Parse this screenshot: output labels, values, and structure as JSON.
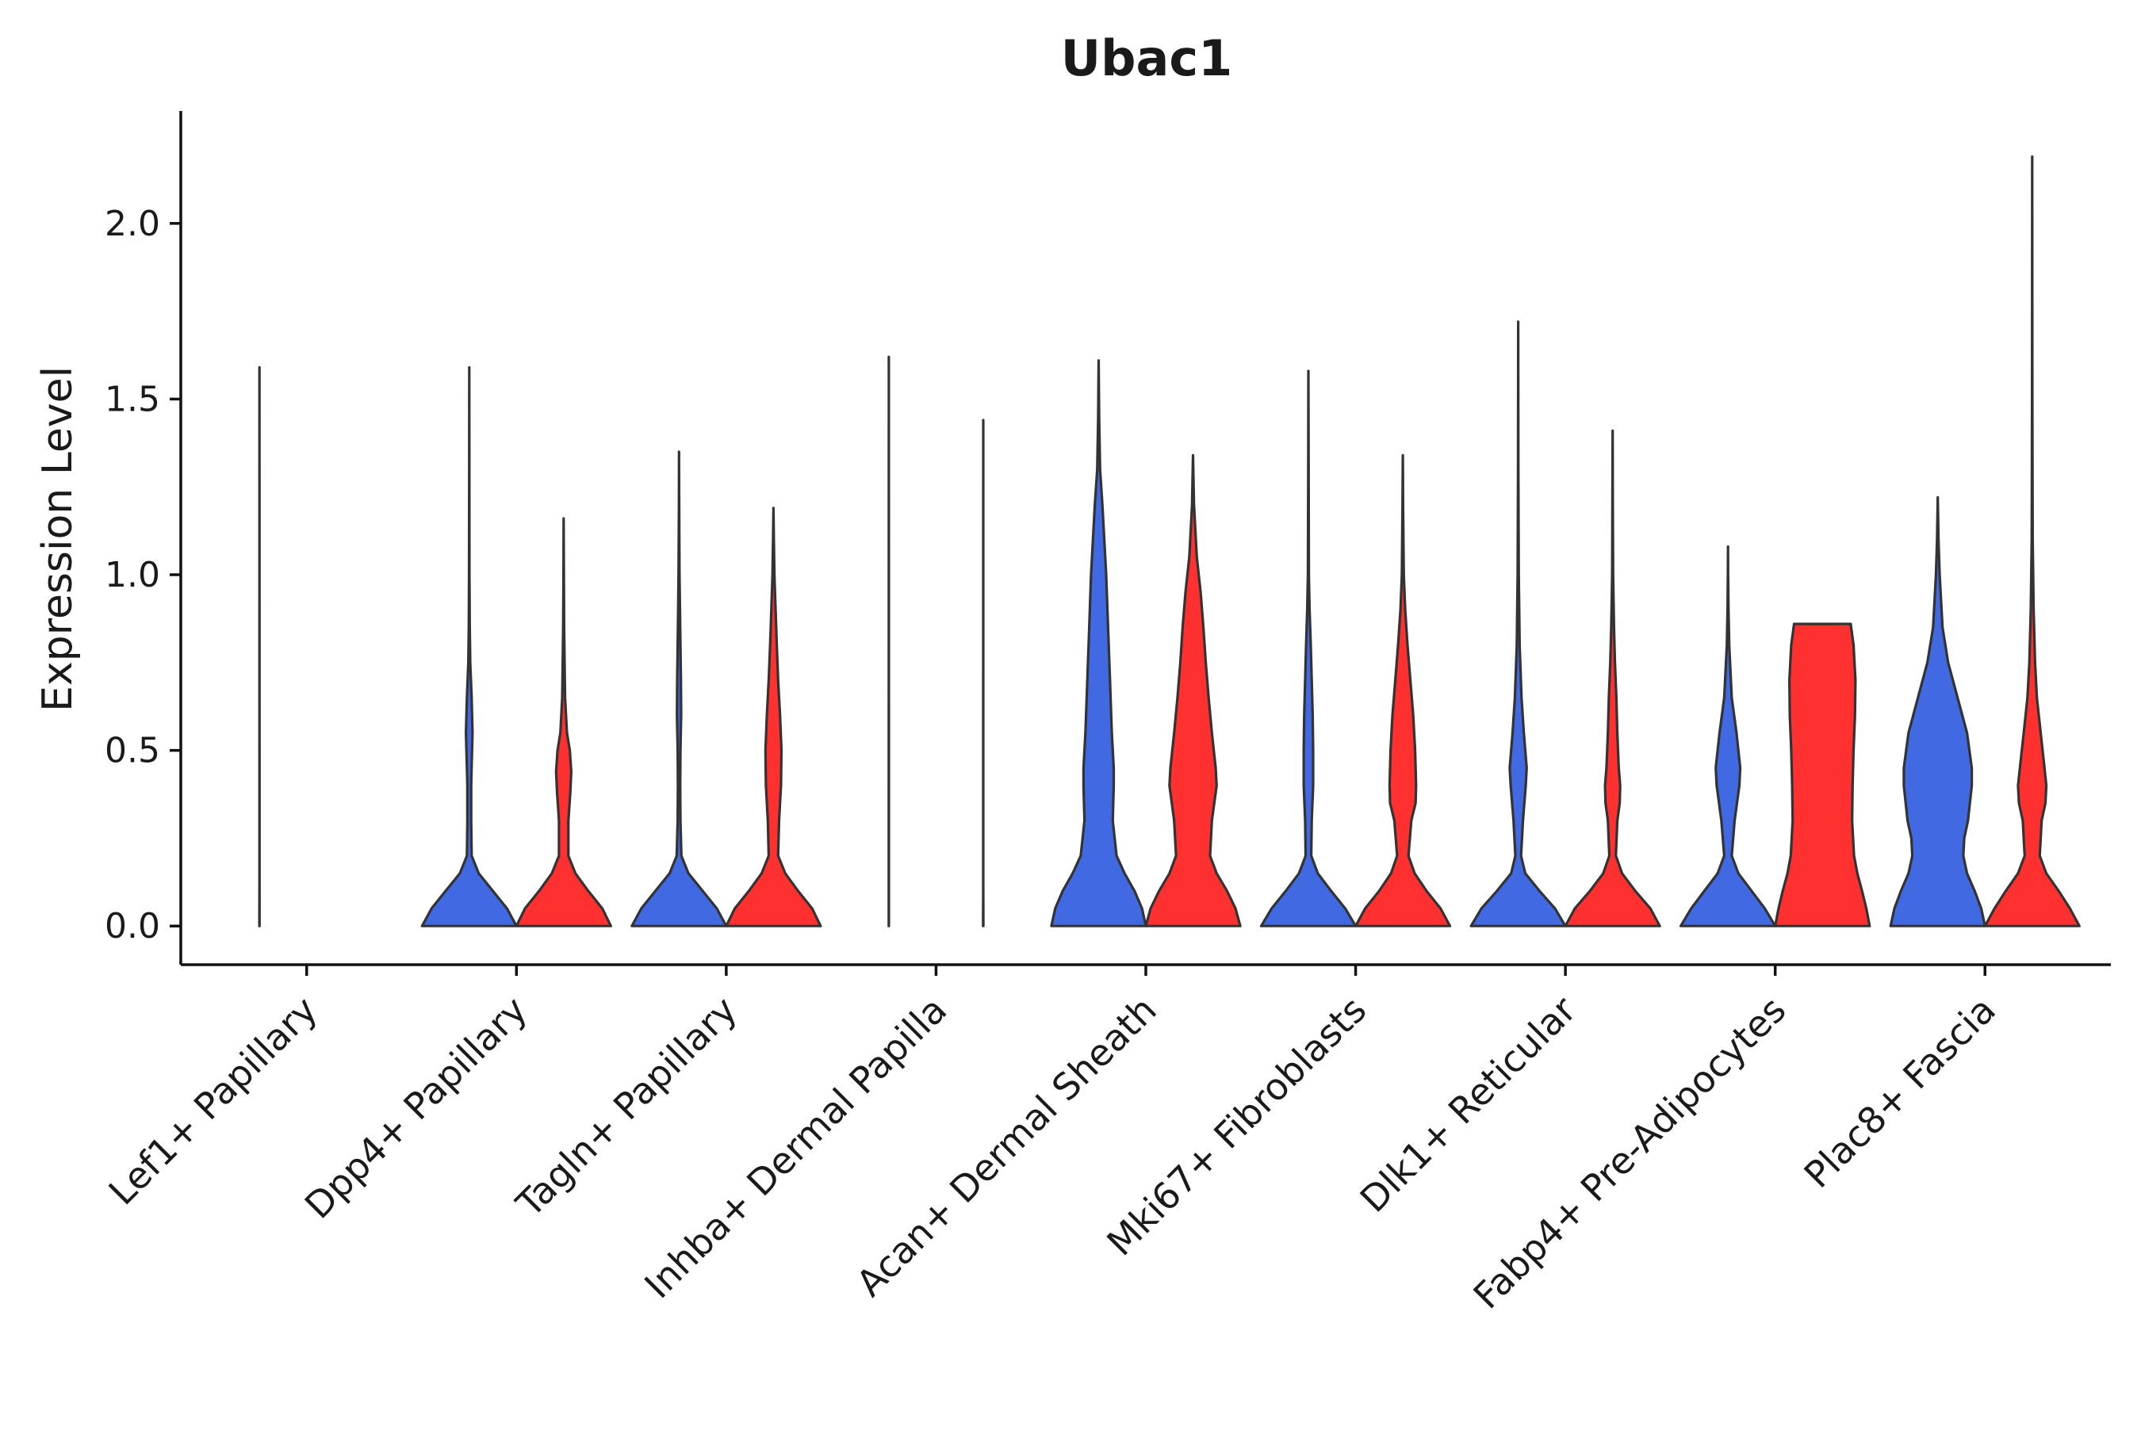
{
  "chart_data": {
    "type": "violin",
    "title": "Ubac1",
    "xlabel": "",
    "ylabel": "Expression Level",
    "ylim": [
      -0.11,
      2.32
    ],
    "yticks": [
      0.0,
      0.5,
      1.0,
      1.5,
      2.0
    ],
    "ytick_labels": [
      "0.0",
      "0.5",
      "1.0",
      "1.5",
      "2.0"
    ],
    "grid": false,
    "legend": "none",
    "categories": [
      "Lef1+ Papillary",
      "Dpp4+ Papillary",
      "Tagln+ Papillary",
      "Inhba+ Dermal Papilla",
      "Acan+ Dermal Sheath",
      "Mki67+ Fibroblasts",
      "Dlk1+ Reticular",
      "Fabp4+ Pre-Adipocytes",
      "Plac8+ Fascia"
    ],
    "series": [
      {
        "color": "#4169e1",
        "violins": [
          {
            "max": 1.59,
            "profile": [
              [
                0.0,
                0.002
              ],
              [
                0.02,
                0.002
              ],
              [
                0.1,
                0.001
              ],
              [
                0.3,
                0.001
              ],
              [
                1.59,
                0.0
              ]
            ]
          },
          {
            "max": 1.59,
            "profile": [
              [
                0.0,
                1.0
              ],
              [
                0.05,
                0.8
              ],
              [
                0.1,
                0.5
              ],
              [
                0.15,
                0.2
              ],
              [
                0.2,
                0.05
              ],
              [
                0.3,
                0.04
              ],
              [
                0.4,
                0.04
              ],
              [
                0.5,
                0.06
              ],
              [
                0.55,
                0.07
              ],
              [
                0.65,
                0.05
              ],
              [
                0.75,
                0.02
              ],
              [
                0.85,
                0.01
              ],
              [
                1.0,
                0.004
              ],
              [
                1.3,
                0.002
              ],
              [
                1.59,
                0.0
              ]
            ]
          },
          {
            "max": 1.35,
            "profile": [
              [
                0.0,
                1.0
              ],
              [
                0.05,
                0.8
              ],
              [
                0.1,
                0.5
              ],
              [
                0.15,
                0.2
              ],
              [
                0.2,
                0.05
              ],
              [
                0.3,
                0.03
              ],
              [
                0.4,
                0.025
              ],
              [
                0.5,
                0.03
              ],
              [
                0.6,
                0.045
              ],
              [
                0.7,
                0.04
              ],
              [
                0.8,
                0.03
              ],
              [
                0.9,
                0.02
              ],
              [
                1.0,
                0.01
              ],
              [
                1.2,
                0.003
              ],
              [
                1.35,
                0.0
              ]
            ]
          },
          {
            "max": 1.62,
            "profile": [
              [
                0.0,
                0.002
              ],
              [
                0.02,
                0.002
              ],
              [
                0.1,
                0.001
              ],
              [
                0.3,
                0.001
              ],
              [
                1.62,
                0.0
              ]
            ]
          },
          {
            "max": 1.61,
            "profile": [
              [
                0.0,
                1.0
              ],
              [
                0.05,
                0.92
              ],
              [
                0.1,
                0.76
              ],
              [
                0.15,
                0.55
              ],
              [
                0.2,
                0.38
              ],
              [
                0.3,
                0.3
              ],
              [
                0.4,
                0.32
              ],
              [
                0.45,
                0.32
              ],
              [
                0.55,
                0.28
              ],
              [
                0.7,
                0.24
              ],
              [
                0.85,
                0.2
              ],
              [
                1.0,
                0.16
              ],
              [
                1.1,
                0.12
              ],
              [
                1.2,
                0.08
              ],
              [
                1.3,
                0.03
              ],
              [
                1.45,
                0.01
              ],
              [
                1.61,
                0.0
              ]
            ]
          },
          {
            "max": 1.58,
            "profile": [
              [
                0.0,
                1.0
              ],
              [
                0.05,
                0.78
              ],
              [
                0.1,
                0.48
              ],
              [
                0.15,
                0.2
              ],
              [
                0.2,
                0.06
              ],
              [
                0.3,
                0.07
              ],
              [
                0.4,
                0.1
              ],
              [
                0.5,
                0.1
              ],
              [
                0.6,
                0.09
              ],
              [
                0.7,
                0.07
              ],
              [
                0.8,
                0.05
              ],
              [
                0.9,
                0.025
              ],
              [
                1.0,
                0.01
              ],
              [
                1.3,
                0.004
              ],
              [
                1.58,
                0.0
              ]
            ]
          },
          {
            "max": 1.72,
            "profile": [
              [
                0.0,
                1.0
              ],
              [
                0.05,
                0.78
              ],
              [
                0.1,
                0.45
              ],
              [
                0.15,
                0.15
              ],
              [
                0.2,
                0.06
              ],
              [
                0.3,
                0.1
              ],
              [
                0.4,
                0.16
              ],
              [
                0.45,
                0.18
              ],
              [
                0.55,
                0.12
              ],
              [
                0.65,
                0.07
              ],
              [
                0.8,
                0.03
              ],
              [
                1.0,
                0.012
              ],
              [
                1.3,
                0.004
              ],
              [
                1.72,
                0.0
              ]
            ]
          },
          {
            "max": 1.08,
            "profile": [
              [
                0.0,
                1.0
              ],
              [
                0.05,
                0.78
              ],
              [
                0.1,
                0.5
              ],
              [
                0.15,
                0.22
              ],
              [
                0.2,
                0.08
              ],
              [
                0.3,
                0.14
              ],
              [
                0.4,
                0.24
              ],
              [
                0.45,
                0.26
              ],
              [
                0.55,
                0.18
              ],
              [
                0.65,
                0.08
              ],
              [
                0.8,
                0.025
              ],
              [
                0.9,
                0.01
              ],
              [
                1.0,
                0.003
              ],
              [
                1.08,
                0.0
              ]
            ]
          },
          {
            "max": 1.22,
            "profile": [
              [
                0.0,
                1.0
              ],
              [
                0.05,
                0.92
              ],
              [
                0.1,
                0.78
              ],
              [
                0.15,
                0.62
              ],
              [
                0.2,
                0.54
              ],
              [
                0.25,
                0.56
              ],
              [
                0.3,
                0.64
              ],
              [
                0.4,
                0.72
              ],
              [
                0.45,
                0.72
              ],
              [
                0.55,
                0.62
              ],
              [
                0.65,
                0.42
              ],
              [
                0.75,
                0.22
              ],
              [
                0.85,
                0.1
              ],
              [
                1.0,
                0.04
              ],
              [
                1.1,
                0.015
              ],
              [
                1.22,
                0.0
              ]
            ]
          }
        ]
      },
      {
        "color": "#ff3030",
        "violins": [
          {
            "max": 0.0,
            "profile": [
              [
                0.0,
                0.0
              ]
            ]
          },
          {
            "max": 1.16,
            "profile": [
              [
                0.0,
                1.0
              ],
              [
                0.05,
                0.82
              ],
              [
                0.1,
                0.52
              ],
              [
                0.15,
                0.25
              ],
              [
                0.2,
                0.1
              ],
              [
                0.3,
                0.1
              ],
              [
                0.38,
                0.14
              ],
              [
                0.44,
                0.16
              ],
              [
                0.5,
                0.13
              ],
              [
                0.55,
                0.07
              ],
              [
                0.65,
                0.03
              ],
              [
                0.75,
                0.02
              ],
              [
                0.85,
                0.01
              ],
              [
                1.0,
                0.004
              ],
              [
                1.16,
                0.0
              ]
            ]
          },
          {
            "max": 1.19,
            "profile": [
              [
                0.0,
                1.0
              ],
              [
                0.05,
                0.82
              ],
              [
                0.1,
                0.52
              ],
              [
                0.15,
                0.25
              ],
              [
                0.2,
                0.1
              ],
              [
                0.3,
                0.12
              ],
              [
                0.4,
                0.16
              ],
              [
                0.5,
                0.17
              ],
              [
                0.6,
                0.14
              ],
              [
                0.7,
                0.1
              ],
              [
                0.8,
                0.07
              ],
              [
                0.9,
                0.045
              ],
              [
                1.0,
                0.02
              ],
              [
                1.1,
                0.008
              ],
              [
                1.19,
                0.0
              ]
            ]
          },
          {
            "max": 1.44,
            "profile": [
              [
                0.0,
                0.002
              ],
              [
                0.02,
                0.002
              ],
              [
                0.1,
                0.001
              ],
              [
                0.3,
                0.001
              ],
              [
                1.44,
                0.0
              ]
            ]
          },
          {
            "max": 1.34,
            "profile": [
              [
                0.0,
                1.0
              ],
              [
                0.05,
                0.9
              ],
              [
                0.1,
                0.72
              ],
              [
                0.15,
                0.5
              ],
              [
                0.2,
                0.36
              ],
              [
                0.3,
                0.4
              ],
              [
                0.4,
                0.5
              ],
              [
                0.45,
                0.48
              ],
              [
                0.55,
                0.4
              ],
              [
                0.65,
                0.33
              ],
              [
                0.75,
                0.27
              ],
              [
                0.85,
                0.22
              ],
              [
                0.95,
                0.16
              ],
              [
                1.05,
                0.08
              ],
              [
                1.2,
                0.02
              ],
              [
                1.34,
                0.0
              ]
            ]
          },
          {
            "max": 1.34,
            "profile": [
              [
                0.0,
                1.0
              ],
              [
                0.05,
                0.8
              ],
              [
                0.1,
                0.5
              ],
              [
                0.15,
                0.25
              ],
              [
                0.2,
                0.12
              ],
              [
                0.3,
                0.18
              ],
              [
                0.35,
                0.27
              ],
              [
                0.4,
                0.28
              ],
              [
                0.5,
                0.26
              ],
              [
                0.6,
                0.22
              ],
              [
                0.7,
                0.16
              ],
              [
                0.8,
                0.1
              ],
              [
                0.9,
                0.05
              ],
              [
                1.0,
                0.02
              ],
              [
                1.2,
                0.006
              ],
              [
                1.34,
                0.0
              ]
            ]
          },
          {
            "max": 1.41,
            "profile": [
              [
                0.0,
                1.0
              ],
              [
                0.05,
                0.8
              ],
              [
                0.1,
                0.48
              ],
              [
                0.15,
                0.2
              ],
              [
                0.2,
                0.07
              ],
              [
                0.3,
                0.1
              ],
              [
                0.35,
                0.15
              ],
              [
                0.4,
                0.16
              ],
              [
                0.45,
                0.13
              ],
              [
                0.55,
                0.1
              ],
              [
                0.65,
                0.08
              ],
              [
                0.75,
                0.05
              ],
              [
                0.85,
                0.03
              ],
              [
                1.0,
                0.01
              ],
              [
                1.2,
                0.004
              ],
              [
                1.41,
                0.0
              ]
            ]
          },
          {
            "max": 0.86,
            "profile": [
              [
                0.0,
                1.0
              ],
              [
                0.05,
                0.93
              ],
              [
                0.1,
                0.84
              ],
              [
                0.15,
                0.74
              ],
              [
                0.2,
                0.67
              ],
              [
                0.3,
                0.63
              ],
              [
                0.4,
                0.64
              ],
              [
                0.5,
                0.66
              ],
              [
                0.6,
                0.69
              ],
              [
                0.7,
                0.7
              ],
              [
                0.8,
                0.66
              ],
              [
                0.86,
                0.6
              ]
            ]
          },
          {
            "max": 2.19,
            "profile": [
              [
                0.0,
                1.0
              ],
              [
                0.05,
                0.8
              ],
              [
                0.1,
                0.56
              ],
              [
                0.15,
                0.3
              ],
              [
                0.2,
                0.16
              ],
              [
                0.3,
                0.2
              ],
              [
                0.35,
                0.28
              ],
              [
                0.4,
                0.3
              ],
              [
                0.45,
                0.26
              ],
              [
                0.55,
                0.18
              ],
              [
                0.65,
                0.1
              ],
              [
                0.75,
                0.06
              ],
              [
                0.9,
                0.03
              ],
              [
                1.1,
                0.01
              ],
              [
                1.5,
                0.003
              ],
              [
                2.19,
                0.0
              ]
            ]
          }
        ]
      }
    ]
  }
}
